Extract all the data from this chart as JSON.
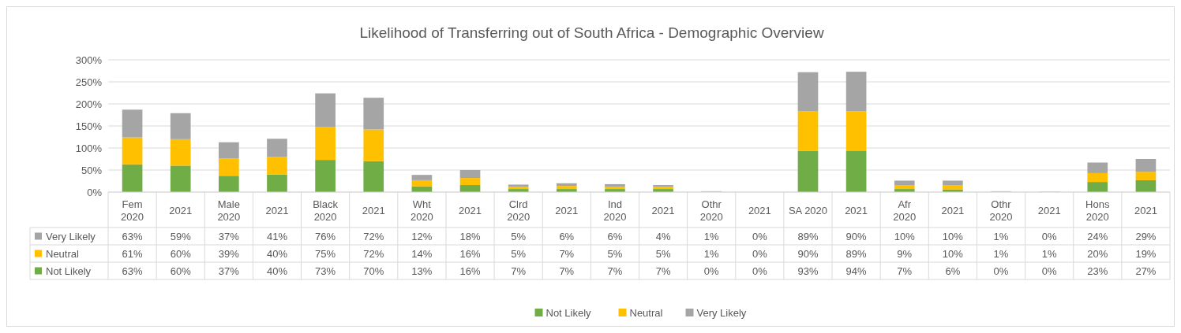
{
  "chart_data": {
    "type": "bar",
    "title": "Likelihood of Transferring out of South Africa - Demographic Overview",
    "categories": [
      "Fem\n2020",
      "2021",
      "Male\n2020",
      "2021",
      "Black\n2020",
      "2021",
      "Wht\n2020",
      "2021",
      "Clrd\n2020",
      "2021",
      "Ind\n2020",
      "2021",
      "Othr\n2020",
      "2021",
      "SA 2020",
      "2021",
      "Afr\n2020",
      "2021",
      "Othr\n2020",
      "2021",
      "Hons\n2020",
      "2021"
    ],
    "stacked": true,
    "series": [
      {
        "name": "Not Likely",
        "color": "#70ad47",
        "values": [
          63,
          60,
          37,
          40,
          73,
          70,
          13,
          16,
          7,
          7,
          7,
          7,
          0,
          0,
          93,
          94,
          7,
          6,
          0,
          0,
          23,
          27
        ],
        "value_labels": [
          "63%",
          "60%",
          "37%",
          "40%",
          "73%",
          "70%",
          "13%",
          "16%",
          "7%",
          "7%",
          "7%",
          "7%",
          "0%",
          "0%",
          "93%",
          "94%",
          "7%",
          "6%",
          "0%",
          "0%",
          "23%",
          "27%"
        ]
      },
      {
        "name": "Neutral",
        "color": "#ffc000",
        "values": [
          61,
          60,
          39,
          40,
          75,
          72,
          14,
          16,
          5,
          7,
          5,
          5,
          1,
          0,
          90,
          89,
          9,
          10,
          1,
          1,
          20,
          19
        ],
        "value_labels": [
          "61%",
          "60%",
          "39%",
          "40%",
          "75%",
          "72%",
          "14%",
          "16%",
          "5%",
          "7%",
          "5%",
          "5%",
          "1%",
          "0%",
          "90%",
          "89%",
          "9%",
          "10%",
          "1%",
          "1%",
          "20%",
          "19%"
        ]
      },
      {
        "name": "Very Likely",
        "color": "#a5a5a5",
        "values": [
          63,
          59,
          37,
          41,
          76,
          72,
          12,
          18,
          5,
          6,
          6,
          4,
          1,
          0,
          89,
          90,
          10,
          10,
          1,
          0,
          24,
          29
        ],
        "value_labels": [
          "63%",
          "59%",
          "37%",
          "41%",
          "76%",
          "72%",
          "12%",
          "18%",
          "5%",
          "6%",
          "6%",
          "4%",
          "1%",
          "0%",
          "89%",
          "90%",
          "10%",
          "10%",
          "1%",
          "0%",
          "24%",
          "29%"
        ]
      }
    ],
    "ylim": [
      0,
      300
    ],
    "yticks": [
      {
        "value": 0,
        "label": "0%"
      },
      {
        "value": 50,
        "label": "50%"
      },
      {
        "value": 100,
        "label": "100%"
      },
      {
        "value": 150,
        "label": "150%"
      },
      {
        "value": 200,
        "label": "200%"
      },
      {
        "value": 250,
        "label": "250%"
      },
      {
        "value": 300,
        "label": "300%"
      }
    ],
    "grid": "y",
    "legend": "bottom"
  }
}
